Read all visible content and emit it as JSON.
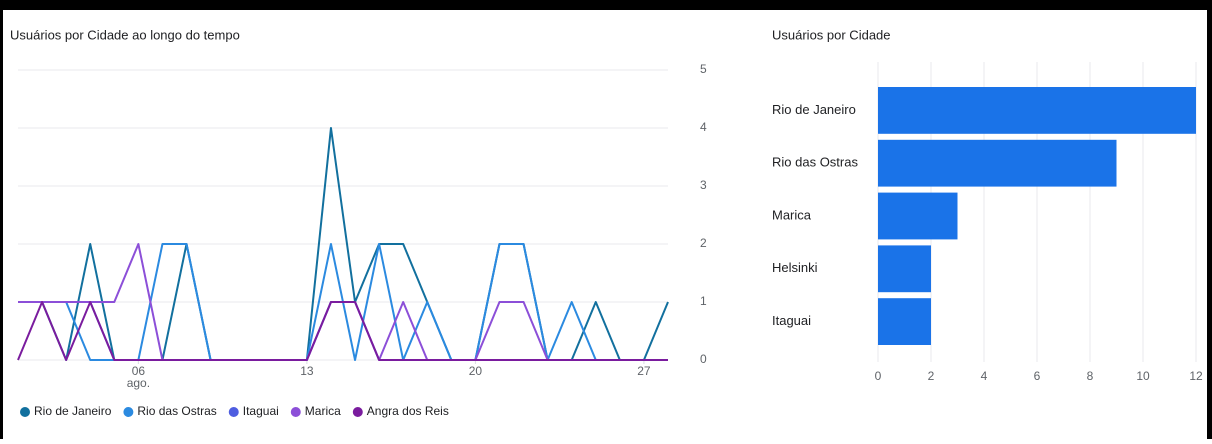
{
  "chart_data": [
    {
      "type": "line",
      "title": "Usuários por Cidade ao longo do tempo",
      "x": [
        1,
        2,
        3,
        4,
        5,
        6,
        7,
        8,
        9,
        10,
        11,
        12,
        13,
        14,
        15,
        16,
        17,
        18,
        19,
        20,
        21,
        22,
        23,
        24,
        25,
        26,
        27,
        28
      ],
      "xlim": [
        1,
        28
      ],
      "xticks": [
        {
          "value": 6,
          "label": "06"
        },
        13,
        20,
        27
      ],
      "xtick_sublabel": "ago.",
      "ylim": [
        0,
        5
      ],
      "yticks": [
        0,
        1,
        2,
        3,
        4,
        5
      ],
      "grid": true,
      "series": [
        {
          "name": "Rio de Janeiro",
          "color": "#12709e",
          "values": [
            1,
            1,
            0,
            2,
            0,
            0,
            0,
            2,
            0,
            0,
            0,
            0,
            0,
            4,
            1,
            2,
            2,
            1,
            0,
            0,
            2,
            2,
            0,
            0,
            1,
            0,
            0,
            1
          ]
        },
        {
          "name": "Rio das Ostras",
          "color": "#2b8ae0",
          "values": [
            1,
            1,
            1,
            0,
            0,
            0,
            2,
            2,
            0,
            0,
            0,
            0,
            0,
            2,
            0,
            2,
            0,
            1,
            0,
            0,
            2,
            2,
            0,
            1,
            0,
            0,
            0,
            0
          ]
        },
        {
          "name": "Itaguai",
          "color": "#4e5de0",
          "values": [
            1,
            1,
            1,
            1,
            0,
            0,
            0,
            0,
            0,
            0,
            0,
            0,
            0,
            1,
            1,
            0,
            0,
            0,
            0,
            0,
            0,
            0,
            0,
            0,
            0,
            0,
            0,
            0
          ]
        },
        {
          "name": "Marica",
          "color": "#8c4fd8",
          "values": [
            1,
            1,
            1,
            1,
            1,
            2,
            0,
            0,
            0,
            0,
            0,
            0,
            0,
            1,
            1,
            0,
            1,
            0,
            0,
            0,
            1,
            1,
            0,
            0,
            0,
            0,
            0,
            0
          ]
        },
        {
          "name": "Angra dos Reis",
          "color": "#7a1c9e",
          "values": [
            0,
            1,
            0,
            1,
            0,
            0,
            0,
            0,
            0,
            0,
            0,
            0,
            0,
            1,
            1,
            0,
            0,
            0,
            0,
            0,
            0,
            0,
            0,
            0,
            0,
            0,
            0,
            0
          ]
        }
      ]
    },
    {
      "type": "hbar",
      "title": "Usuários por Cidade",
      "categories": [
        "Rio de Janeiro",
        "Rio das Ostras",
        "Marica",
        "Helsinki",
        "Itaguai"
      ],
      "values": [
        12,
        9,
        3,
        2,
        2
      ],
      "color": "#1a73e8",
      "xlim": [
        0,
        12
      ],
      "xticks": [
        0,
        2,
        4,
        6,
        8,
        10,
        12
      ],
      "grid": true
    }
  ]
}
